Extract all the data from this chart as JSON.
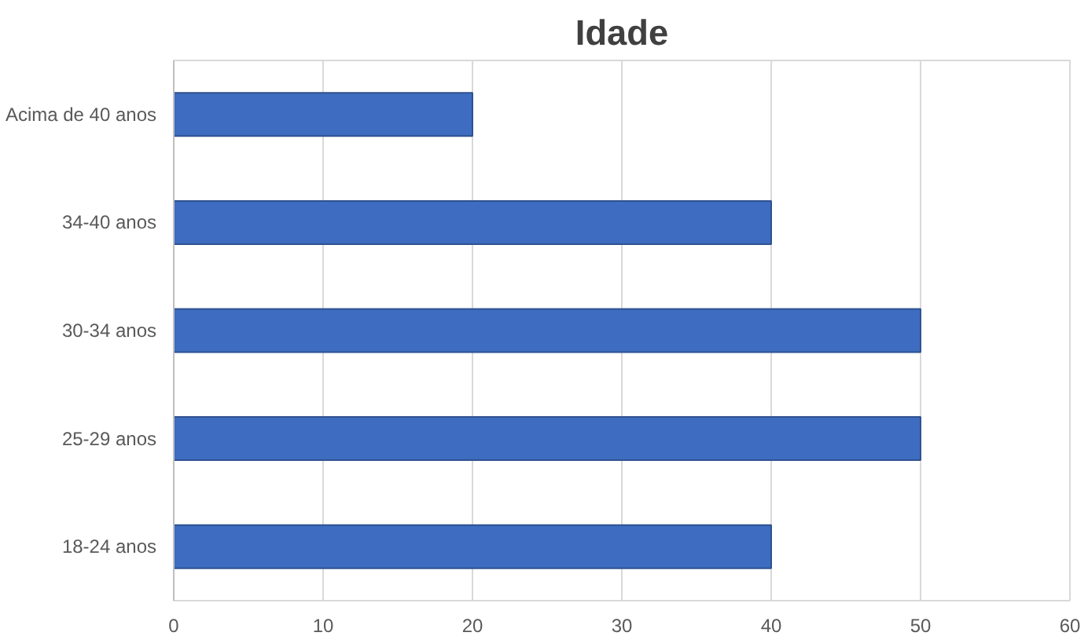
{
  "chart_data": {
    "type": "bar",
    "orientation": "horizontal",
    "title": "Idade",
    "categories": [
      "Acima de 40 anos",
      "34-40 anos",
      "30-34 anos",
      "25-29 anos",
      "18-24 anos"
    ],
    "values": [
      20,
      40,
      50,
      50,
      40
    ],
    "color": "#3d6cc0",
    "xlim": [
      0,
      60
    ],
    "xticks": [
      0,
      10,
      20,
      30,
      40,
      50,
      60
    ],
    "grid": "x"
  }
}
